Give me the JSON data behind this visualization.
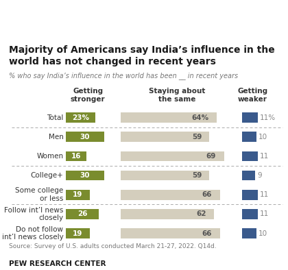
{
  "title": "Majority of Americans say India’s influence in the\nworld has not changed in recent years",
  "subtitle": "% who say India’s influence in the world has been __ in recent years",
  "categories": [
    "Total",
    "Men",
    "Women",
    "College+",
    "Some college\nor less",
    "Follow int’l news\nclosely",
    "Do not follow\nint’l news closely"
  ],
  "stronger": [
    23,
    30,
    16,
    30,
    19,
    26,
    19
  ],
  "same": [
    64,
    59,
    69,
    59,
    66,
    62,
    66
  ],
  "weaker": [
    11,
    10,
    11,
    9,
    11,
    11,
    10
  ],
  "stronger_color": "#7a8c2e",
  "same_color": "#d4cebd",
  "weaker_color": "#3a5a8c",
  "source": "Source: Survey of U.S. adults conducted March 21-27, 2022. Q14d.",
  "footer": "PEW RESEARCH CENTER",
  "col_headers": [
    "Getting\nstronger",
    "Staying about\nthe same",
    "Getting\nweaker"
  ],
  "divider_after": [
    0,
    2,
    4
  ],
  "background_color": "#ffffff"
}
